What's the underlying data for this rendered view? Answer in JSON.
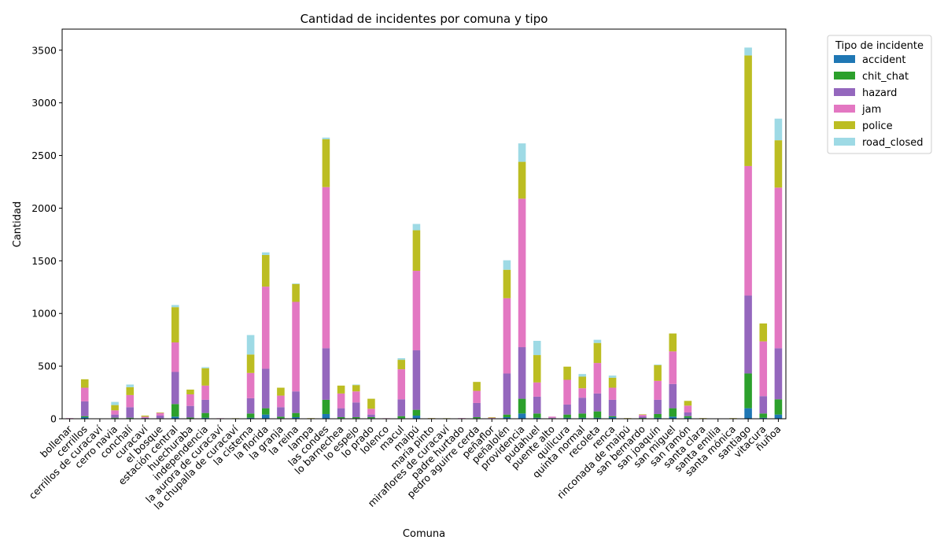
{
  "chart_data": {
    "type": "bar",
    "stacked": true,
    "title": "Cantidad de incidentes por comuna y tipo",
    "xlabel": "Comuna",
    "ylabel": "Cantidad",
    "ylim": [
      0,
      3700
    ],
    "yticks": [
      0,
      500,
      1000,
      1500,
      2000,
      2500,
      3000,
      3500
    ],
    "grid": false,
    "legend": {
      "title": "Tipo de incidente",
      "placement": "outside-top-right"
    },
    "categories": [
      "bollenar",
      "cerrillos",
      "cerrillos de curacaví",
      "cerro navia",
      "conchalí",
      "curacaví",
      "el bosque",
      "estación central",
      "huechuraba",
      "independencia",
      "la aurora de curacaví",
      "la chupalla de curacaví",
      "la cisterna",
      "la florida",
      "la granja",
      "la reina",
      "lampa",
      "las condes",
      "lo barnechea",
      "lo espejo",
      "lo prado",
      "lolenco",
      "macul",
      "maipú",
      "maria pinto",
      "miraflores de curacaví",
      "padre hurtado",
      "pedro aguirre cerda",
      "peñaflor",
      "peñalolén",
      "providencia",
      "pudahuel",
      "puente alto",
      "quilicura",
      "quinta normal",
      "recoleta",
      "renca",
      "rinconada de maipú",
      "san bernardo",
      "san joaquín",
      "san miguel",
      "san ramón",
      "santa clara",
      "santa emilia",
      "santa mónica",
      "santiago",
      "vitacura",
      "ñuñoa"
    ],
    "series": [
      {
        "name": "accident",
        "color": "#1f77b4",
        "values": [
          0,
          15,
          0,
          5,
          5,
          0,
          2,
          20,
          2,
          10,
          0,
          0,
          10,
          40,
          5,
          15,
          0,
          45,
          5,
          5,
          5,
          0,
          5,
          30,
          0,
          0,
          0,
          5,
          0,
          15,
          50,
          10,
          0,
          10,
          10,
          10,
          15,
          0,
          2,
          10,
          20,
          10,
          0,
          0,
          0,
          100,
          10,
          40
        ]
      },
      {
        "name": "chit_chat",
        "color": "#2ca02c",
        "values": [
          0,
          10,
          0,
          5,
          5,
          0,
          3,
          120,
          10,
          45,
          0,
          0,
          40,
          60,
          15,
          40,
          0,
          135,
          10,
          10,
          10,
          0,
          20,
          55,
          0,
          0,
          0,
          10,
          0,
          25,
          140,
          40,
          5,
          30,
          40,
          60,
          10,
          0,
          5,
          35,
          80,
          15,
          0,
          0,
          0,
          330,
          40,
          145
        ]
      },
      {
        "name": "hazard",
        "color": "#9467bd",
        "values": [
          3,
          140,
          2,
          30,
          100,
          10,
          25,
          305,
          110,
          125,
          2,
          2,
          145,
          375,
          90,
          205,
          2,
          490,
          85,
          140,
          25,
          2,
          160,
          565,
          3,
          2,
          3,
          135,
          5,
          390,
          490,
          160,
          5,
          95,
          150,
          170,
          155,
          2,
          15,
          135,
          230,
          35,
          2,
          2,
          2,
          740,
          165,
          485
        ]
      },
      {
        "name": "jam",
        "color": "#e377c2",
        "values": [
          3,
          130,
          1,
          40,
          115,
          10,
          25,
          280,
          110,
          135,
          3,
          0,
          240,
          780,
          110,
          850,
          2,
          1530,
          140,
          105,
          55,
          3,
          285,
          755,
          2,
          1,
          3,
          115,
          5,
          715,
          1410,
          135,
          10,
          235,
          90,
          290,
          115,
          2,
          15,
          180,
          310,
          65,
          2,
          1,
          2,
          1230,
          520,
          1525
        ]
      },
      {
        "name": "police",
        "color": "#bcbd22",
        "values": [
          0,
          80,
          0,
          50,
          75,
          10,
          5,
          335,
          45,
          165,
          0,
          3,
          175,
          300,
          75,
          170,
          2,
          455,
          75,
          60,
          95,
          0,
          90,
          385,
          2,
          2,
          0,
          85,
          5,
          270,
          350,
          260,
          0,
          125,
          110,
          190,
          95,
          2,
          5,
          150,
          170,
          45,
          2,
          0,
          2,
          1050,
          170,
          450
        ]
      },
      {
        "name": "road_closed",
        "color": "#9edae5",
        "values": [
          0,
          0,
          0,
          30,
          25,
          0,
          0,
          20,
          0,
          10,
          0,
          0,
          185,
          25,
          0,
          5,
          0,
          15,
          0,
          5,
          0,
          0,
          15,
          60,
          0,
          0,
          0,
          0,
          0,
          90,
          175,
          135,
          0,
          0,
          25,
          30,
          20,
          0,
          0,
          5,
          0,
          0,
          0,
          0,
          0,
          75,
          0,
          205
        ]
      }
    ]
  }
}
